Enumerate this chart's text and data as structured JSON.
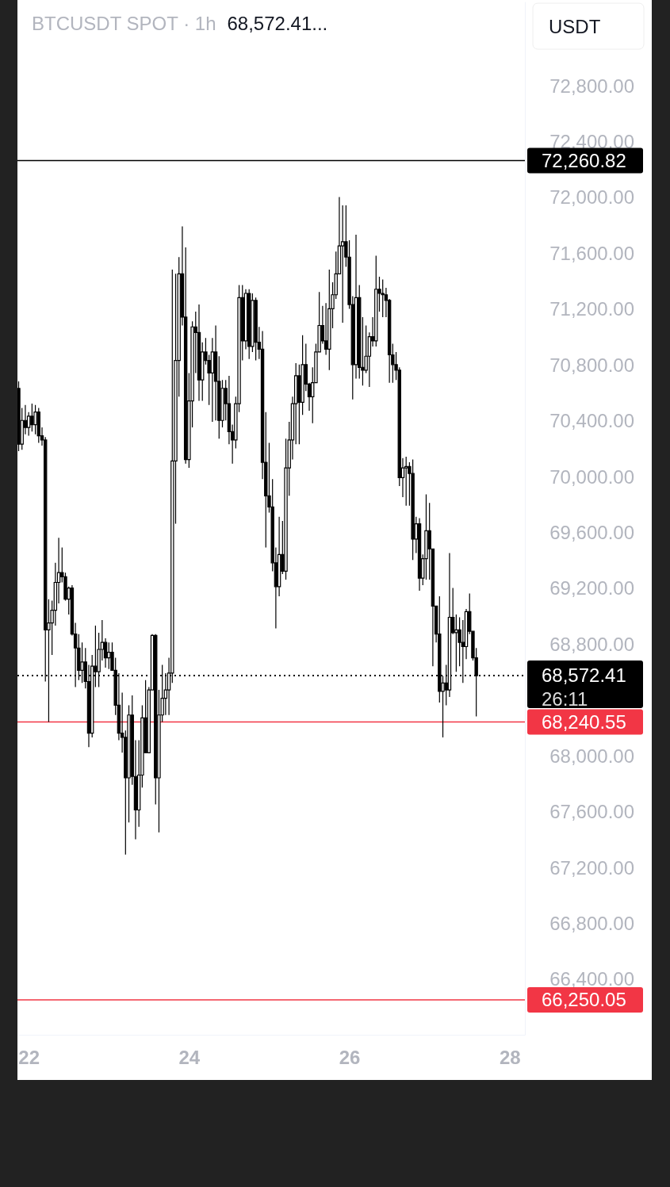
{
  "chart_data": {
    "type": "candlestick",
    "title": "BTCUSDT SPOT · 1h",
    "subtitle": "68,572.41...",
    "ylabel": "USDT",
    "color": "#000000",
    "x": [
      21.875,
      21.9167,
      21.9583,
      22,
      22.0417,
      22.0833,
      22.125,
      22.1667,
      22.2083,
      22.25,
      22.2917,
      22.3333,
      22.375,
      22.4167,
      22.4583,
      22.5,
      22.5417,
      22.5833,
      22.625,
      22.6667,
      22.7083,
      22.75,
      22.7917,
      22.8333,
      22.875,
      22.9167,
      22.9583,
      23,
      23.0417,
      23.0833,
      23.125,
      23.1667,
      23.2083,
      23.25,
      23.2917,
      23.3333,
      23.375,
      23.4167,
      23.4583,
      23.5,
      23.5417,
      23.5833,
      23.625,
      23.6667,
      23.7083,
      23.75,
      23.7917,
      23.8333,
      23.875,
      23.9167,
      23.9583,
      24,
      24.0417,
      24.0833,
      24.125,
      24.1667,
      24.2083,
      24.25,
      24.2917,
      24.3333,
      24.375,
      24.4167,
      24.4583,
      24.5,
      24.5417,
      24.5833,
      24.625,
      24.6667,
      24.7083,
      24.75,
      24.7917,
      24.8333,
      24.875,
      24.9167,
      24.9583,
      25,
      25.0417,
      25.0833,
      25.125,
      25.1667,
      25.2083,
      25.25,
      25.2917,
      25.3333,
      25.375,
      25.4167,
      25.4583,
      25.5,
      25.5417,
      25.5833,
      25.625,
      25.6667,
      25.7083,
      25.75,
      25.7917,
      25.8333,
      25.875,
      25.9167,
      25.9583,
      26,
      26.0417,
      26.0833,
      26.125,
      26.1667,
      26.2083,
      26.25,
      26.2917,
      26.3333,
      26.375,
      26.4167,
      26.4583,
      26.5,
      26.5417,
      26.5833,
      26.625,
      26.6667,
      26.7083,
      26.75,
      26.7917,
      26.8333,
      26.875,
      26.9167,
      26.9583,
      27,
      27.0417,
      27.0833,
      27.125,
      27.1667,
      27.2083,
      27.25,
      27.2917,
      27.3333,
      27.375,
      27.4167,
      27.4583,
      27.5,
      27.5417,
      27.5833
    ],
    "ohlc": [
      [
        70630,
        70680,
        70180,
        70230
      ],
      [
        70230,
        70490,
        70190,
        70400
      ],
      [
        70400,
        70510,
        70300,
        70350
      ],
      [
        70350,
        70460,
        70290,
        70430
      ],
      [
        70430,
        70520,
        70320,
        70370
      ],
      [
        70370,
        70510,
        70300,
        70460
      ],
      [
        70460,
        70490,
        70240,
        70290
      ],
      [
        70290,
        70350,
        70220,
        70260
      ],
      [
        70260,
        70280,
        68530,
        68900
      ],
      [
        68900,
        69120,
        68240,
        68950
      ],
      [
        68950,
        69110,
        68720,
        69040
      ],
      [
        69040,
        69380,
        68930,
        69240
      ],
      [
        69240,
        69560,
        69090,
        69310
      ],
      [
        69310,
        69490,
        69240,
        69280
      ],
      [
        69280,
        69310,
        69110,
        69120
      ],
      [
        69120,
        69210,
        69010,
        69200
      ],
      [
        69200,
        69220,
        68860,
        68870
      ],
      [
        68870,
        68950,
        68490,
        68770
      ],
      [
        68770,
        68870,
        68540,
        68610
      ],
      [
        68610,
        68810,
        68520,
        68670
      ],
      [
        68670,
        68770,
        68480,
        68530
      ],
      [
        68530,
        68650,
        68060,
        68160
      ],
      [
        68160,
        68720,
        68130,
        68640
      ],
      [
        68640,
        68930,
        68490,
        68600
      ],
      [
        68600,
        68880,
        68490,
        68760
      ],
      [
        68760,
        68970,
        68680,
        68810
      ],
      [
        68810,
        68840,
        68630,
        68700
      ],
      [
        68700,
        68810,
        68620,
        68740
      ],
      [
        68740,
        68810,
        68610,
        68610
      ],
      [
        68610,
        68700,
        68290,
        68360
      ],
      [
        68360,
        68590,
        68110,
        68160
      ],
      [
        68160,
        68450,
        68020,
        68130
      ],
      [
        68130,
        68180,
        67290,
        67840
      ],
      [
        67840,
        68360,
        67520,
        68290
      ],
      [
        68290,
        68430,
        67790,
        67850
      ],
      [
        67850,
        68110,
        67400,
        67610
      ],
      [
        67610,
        68110,
        67490,
        67860
      ],
      [
        67860,
        68360,
        67770,
        68270
      ],
      [
        68270,
        68540,
        68020,
        68020
      ],
      [
        68020,
        68490,
        68020,
        68470
      ],
      [
        68470,
        68870,
        68470,
        68860
      ],
      [
        68860,
        68870,
        67650,
        67840
      ],
      [
        67840,
        68470,
        67450,
        68290
      ],
      [
        68290,
        68650,
        68240,
        68410
      ],
      [
        68410,
        68590,
        68290,
        68470
      ],
      [
        68470,
        68700,
        68290,
        68590
      ],
      [
        68590,
        71480,
        68520,
        70110
      ],
      [
        70110,
        71450,
        69660,
        70830
      ],
      [
        70830,
        71570,
        70570,
        71450
      ],
      [
        71450,
        71790,
        71080,
        71140
      ],
      [
        71140,
        71640,
        70090,
        70120
      ],
      [
        70120,
        70740,
        70060,
        70540
      ],
      [
        70540,
        71110,
        70350,
        71070
      ],
      [
        71070,
        71180,
        70740,
        71030
      ],
      [
        71030,
        71230,
        70540,
        70690
      ],
      [
        70690,
        70960,
        70540,
        70890
      ],
      [
        70890,
        70990,
        70800,
        70830
      ],
      [
        70830,
        70870,
        70510,
        70740
      ],
      [
        70740,
        70990,
        70390,
        70890
      ],
      [
        70890,
        71080,
        70400,
        70680
      ],
      [
        70680,
        70860,
        70270,
        70400
      ],
      [
        70400,
        70690,
        70350,
        70630
      ],
      [
        70630,
        70690,
        70400,
        70520
      ],
      [
        70520,
        70720,
        70230,
        70320
      ],
      [
        70320,
        70370,
        70090,
        70260
      ],
      [
        70260,
        70570,
        70200,
        70520
      ],
      [
        70520,
        71370,
        70460,
        71280
      ],
      [
        71280,
        71370,
        70830,
        70970
      ],
      [
        70970,
        71340,
        70910,
        71310
      ],
      [
        71310,
        71340,
        70840,
        70930
      ],
      [
        70930,
        71310,
        70890,
        71260
      ],
      [
        71260,
        71280,
        70830,
        70960
      ],
      [
        70960,
        71070,
        70840,
        70910
      ],
      [
        70910,
        71040,
        69980,
        70100
      ],
      [
        70100,
        70460,
        69490,
        69860
      ],
      [
        69860,
        70240,
        69740,
        69780
      ],
      [
        69780,
        69980,
        69320,
        69380
      ],
      [
        69380,
        69490,
        68910,
        69210
      ],
      [
        69210,
        69710,
        69140,
        69440
      ],
      [
        69440,
        69680,
        69300,
        69320
      ],
      [
        69320,
        70270,
        69260,
        70060
      ],
      [
        70060,
        70390,
        69860,
        70260
      ],
      [
        70260,
        70570,
        70120,
        70520
      ],
      [
        70520,
        70810,
        70230,
        70720
      ],
      [
        70720,
        70800,
        70230,
        70530
      ],
      [
        70530,
        71010,
        70440,
        70800
      ],
      [
        70800,
        70950,
        70610,
        70660
      ],
      [
        70660,
        70670,
        70470,
        70570
      ],
      [
        70570,
        70780,
        70380,
        70670
      ],
      [
        70670,
        70950,
        70670,
        70890
      ],
      [
        70890,
        71320,
        70890,
        71080
      ],
      [
        71080,
        71220,
        70950,
        70970
      ],
      [
        70970,
        71240,
        70870,
        70910
      ],
      [
        70910,
        71480,
        70760,
        71200
      ],
      [
        71200,
        71390,
        71060,
        71300
      ],
      [
        71300,
        71610,
        71270,
        71450
      ],
      [
        71450,
        72000,
        71450,
        71650
      ],
      [
        71650,
        71940,
        71100,
        71680
      ],
      [
        71680,
        71940,
        71500,
        71570
      ],
      [
        71570,
        71690,
        71200,
        71230
      ],
      [
        71230,
        71290,
        70550,
        70800
      ],
      [
        70800,
        71730,
        70700,
        71280
      ],
      [
        71280,
        71370,
        70700,
        70780
      ],
      [
        70780,
        71140,
        70650,
        70760
      ],
      [
        70760,
        71080,
        70740,
        70860
      ],
      [
        70860,
        71030,
        70640,
        71000
      ],
      [
        71000,
        71140,
        70930,
        70970
      ],
      [
        70970,
        71580,
        70930,
        71340
      ],
      [
        71340,
        71430,
        71180,
        71310
      ],
      [
        71310,
        71410,
        71140,
        71300
      ],
      [
        71300,
        71350,
        71140,
        71260
      ],
      [
        71260,
        71270,
        70670,
        70870
      ],
      [
        70870,
        70950,
        70670,
        70800
      ],
      [
        70800,
        70890,
        70690,
        70760
      ],
      [
        70760,
        70780,
        69930,
        69990
      ],
      [
        69990,
        70130,
        69850,
        70060
      ],
      [
        70060,
        70140,
        69790,
        70070
      ],
      [
        70070,
        70100,
        69790,
        70020
      ],
      [
        70020,
        70120,
        69400,
        69550
      ],
      [
        69550,
        69710,
        69450,
        69660
      ],
      [
        69660,
        69700,
        69180,
        69270
      ],
      [
        69270,
        69440,
        69220,
        69410
      ],
      [
        69410,
        69870,
        69260,
        69610
      ],
      [
        69610,
        69810,
        69260,
        69480
      ],
      [
        69480,
        69480,
        68640,
        69070
      ],
      [
        69070,
        69070,
        68810,
        68870
      ],
      [
        68870,
        69140,
        68380,
        68460
      ],
      [
        68460,
        68570,
        68130,
        68520
      ],
      [
        68520,
        68650,
        68360,
        68470
      ],
      [
        68470,
        69450,
        68420,
        68990
      ],
      [
        68990,
        69200,
        68870,
        68880
      ],
      [
        68880,
        69010,
        68600,
        68900
      ],
      [
        68900,
        68990,
        68640,
        68810
      ],
      [
        68810,
        68970,
        68520,
        68780
      ],
      [
        68780,
        69050,
        68690,
        69030
      ],
      [
        69030,
        69160,
        68870,
        68890
      ],
      [
        68890,
        68890,
        68680,
        68700
      ],
      [
        68700,
        68770,
        68280,
        68572.41
      ]
    ],
    "xlim": [
      21.86,
      28.19
    ],
    "xticks": [
      22,
      24,
      26,
      28
    ],
    "ylim": [
      66000,
      73400
    ],
    "yticks": [
      {
        "value": 66400,
        "label": "66,400.00"
      },
      {
        "value": 66800,
        "label": "66,800.00"
      },
      {
        "value": 67200,
        "label": "67,200.00"
      },
      {
        "value": 67600,
        "label": "67,600.00"
      },
      {
        "value": 68000,
        "label": "68,000.00"
      },
      {
        "value": 68800,
        "label": "68,800.00"
      },
      {
        "value": 69200,
        "label": "69,200.00"
      },
      {
        "value": 69600,
        "label": "69,600.00"
      },
      {
        "value": 70000,
        "label": "70,000.00"
      },
      {
        "value": 70400,
        "label": "70,400.00"
      },
      {
        "value": 70800,
        "label": "70,800.00"
      },
      {
        "value": 71200,
        "label": "71,200.00"
      },
      {
        "value": 71600,
        "label": "71,600.00"
      },
      {
        "value": 72000,
        "label": "72,000.00"
      },
      {
        "value": 72400,
        "label": "72,400.00"
      },
      {
        "value": 72800,
        "label": "72,800.00"
      }
    ],
    "ref_lines": [
      {
        "axis": "y",
        "value": 72260.82,
        "label": "72,260.82",
        "color": "#000000",
        "line_style": "solid"
      },
      {
        "axis": "y",
        "value": 68240.55,
        "label": "68,240.55",
        "color": "#f23645",
        "line_style": "solid"
      },
      {
        "axis": "y",
        "value": 66250.05,
        "label": "66,250.05",
        "color": "#f23645",
        "line_style": "solid"
      },
      {
        "axis": "y",
        "value": 68572.41,
        "label": "68,572.41",
        "color": "#000000",
        "line_style": "dotted"
      }
    ],
    "annotations": [
      "26:11"
    ]
  }
}
